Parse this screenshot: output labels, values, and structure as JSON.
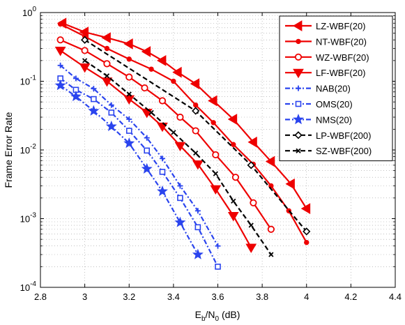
{
  "chart_data": {
    "type": "line",
    "title": "",
    "xlabel": {
      "main": "E",
      "sub1": "b",
      "mid": "/N",
      "sub2": "0",
      "tail": " (dB)"
    },
    "ylabel": "Frame Error Rate",
    "xlim": [
      2.8,
      4.4
    ],
    "ylim": [
      0.0001,
      1
    ],
    "yscale": "log",
    "grid": true,
    "legend_position": "top-right",
    "x_ticks": [
      2.8,
      3.0,
      3.2,
      3.4,
      3.6,
      3.8,
      4.0,
      4.2,
      4.4
    ],
    "x_tick_labels": [
      "2.8",
      "3",
      "3.2",
      "3.4",
      "3.6",
      "3.8",
      "4",
      "4.2",
      "4.4"
    ],
    "y_ticks": [
      {
        "value": 1,
        "base": "10",
        "exp": "0"
      },
      {
        "value": 0.1,
        "base": "10",
        "exp": "-1"
      },
      {
        "value": 0.01,
        "base": "10",
        "exp": "-2"
      },
      {
        "value": 0.001,
        "base": "10",
        "exp": "-3"
      },
      {
        "value": 0.0001,
        "base": "10",
        "exp": "-4"
      }
    ],
    "series": [
      {
        "name": "LZ-WBF(20)",
        "color": "#ee0000",
        "dash": "solid",
        "marker": "triangle-left",
        "x": [
          2.9,
          3.0,
          3.1,
          3.2,
          3.28,
          3.35,
          3.42,
          3.5,
          3.58,
          3.67,
          3.76,
          3.84,
          3.93,
          4.0
        ],
        "y": [
          0.7,
          0.52,
          0.43,
          0.35,
          0.27,
          0.2,
          0.135,
          0.092,
          0.052,
          0.028,
          0.013,
          0.0068,
          0.0032,
          0.0014
        ]
      },
      {
        "name": "NT-WBF(20)",
        "color": "#ee0000",
        "dash": "solid",
        "marker": "dot",
        "x": [
          2.89,
          3.0,
          3.1,
          3.2,
          3.3,
          3.4,
          3.5,
          3.58,
          3.67,
          3.76,
          3.84,
          3.92,
          4.0
        ],
        "y": [
          0.68,
          0.45,
          0.3,
          0.21,
          0.15,
          0.1,
          0.045,
          0.025,
          0.012,
          0.0062,
          0.003,
          0.0013,
          0.00045
        ]
      },
      {
        "name": "WZ-WBF(20)",
        "color": "#ee0000",
        "dash": "solid",
        "marker": "circle",
        "x": [
          2.89,
          3.0,
          3.1,
          3.2,
          3.27,
          3.35,
          3.43,
          3.5,
          3.59,
          3.68,
          3.76,
          3.84
        ],
        "y": [
          0.4,
          0.28,
          0.18,
          0.115,
          0.08,
          0.052,
          0.03,
          0.019,
          0.0085,
          0.004,
          0.0017,
          0.0007
        ]
      },
      {
        "name": "LF-WBF(20)",
        "color": "#ee0000",
        "dash": "solid",
        "marker": "triangle-down",
        "x": [
          2.89,
          3.0,
          3.1,
          3.2,
          3.28,
          3.35,
          3.43,
          3.51,
          3.59,
          3.67,
          3.75
        ],
        "y": [
          0.28,
          0.16,
          0.1,
          0.055,
          0.035,
          0.022,
          0.0115,
          0.0062,
          0.0027,
          0.0011,
          0.00038
        ]
      },
      {
        "name": "NAB(20)",
        "color": "#2a44ee",
        "dash": "dashdot",
        "marker": "plus",
        "x": [
          2.89,
          2.96,
          3.04,
          3.12,
          3.2,
          3.28,
          3.35,
          3.43,
          3.51,
          3.6
        ],
        "y": [
          0.17,
          0.11,
          0.078,
          0.045,
          0.028,
          0.015,
          0.0075,
          0.003,
          0.0013,
          0.0004
        ]
      },
      {
        "name": "OMS(20)",
        "color": "#2a44ee",
        "dash": "dashdot",
        "marker": "square",
        "x": [
          2.89,
          2.96,
          3.04,
          3.12,
          3.2,
          3.28,
          3.35,
          3.43,
          3.51,
          3.6
        ],
        "y": [
          0.11,
          0.075,
          0.055,
          0.035,
          0.019,
          0.0098,
          0.0048,
          0.002,
          0.00075,
          0.0002
        ]
      },
      {
        "name": "NMS(20)",
        "color": "#2a44ee",
        "dash": "dashdot",
        "marker": "star",
        "x": [
          2.89,
          2.96,
          3.04,
          3.12,
          3.2,
          3.28,
          3.35,
          3.43,
          3.51
        ],
        "y": [
          0.087,
          0.06,
          0.037,
          0.022,
          0.0125,
          0.0053,
          0.0025,
          0.00088,
          0.0003
        ]
      },
      {
        "name": "LP-WBF(200)",
        "color": "#000000",
        "dash": "dash",
        "marker": "diamond",
        "x": [
          3.0,
          3.5,
          3.75,
          4.0
        ],
        "y": [
          0.4,
          0.037,
          0.006,
          0.00065
        ]
      },
      {
        "name": "SZ-WBF(200)",
        "color": "#000000",
        "dash": "dash",
        "marker": "x",
        "x": [
          3.0,
          3.1,
          3.2,
          3.3,
          3.4,
          3.5,
          3.59,
          3.67,
          3.75,
          3.84
        ],
        "y": [
          0.2,
          0.12,
          0.065,
          0.035,
          0.018,
          0.009,
          0.0045,
          0.0018,
          0.0008,
          0.0003
        ]
      }
    ]
  }
}
